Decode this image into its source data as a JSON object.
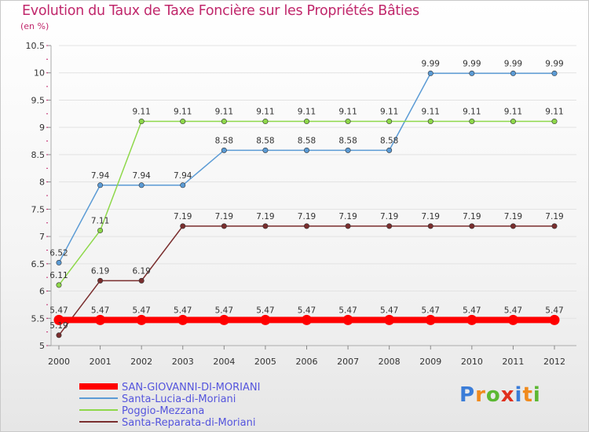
{
  "chart_data": {
    "type": "line",
    "title": "Evolution du Taux de Taxe Foncière sur les Propriétés Bâties",
    "subtitle": "(en %)",
    "xlabel": "",
    "ylabel": "(en %)",
    "ylim": [
      5,
      10.5
    ],
    "yticks": [
      "5",
      "5.5",
      "6",
      "6.5",
      "7",
      "7.5",
      "8",
      "8.5",
      "9",
      "9.5",
      "10",
      "10.5"
    ],
    "yticks_values": [
      5,
      5.5,
      6,
      6.5,
      7,
      7.5,
      8,
      8.5,
      9,
      9.5,
      10,
      10.5
    ],
    "x": [
      "2000",
      "2001",
      "2002",
      "2003",
      "2004",
      "2005",
      "2006",
      "2007",
      "2008",
      "2009",
      "2010",
      "2011",
      "2012"
    ],
    "grid": "horizontal",
    "series": [
      {
        "name": "SAN-GIOVANNI-DI-MORIANI",
        "color": "#ff0000",
        "values": [
          5.47,
          5.47,
          5.47,
          5.47,
          5.47,
          5.47,
          5.47,
          5.47,
          5.47,
          5.47,
          5.47,
          5.47,
          5.47
        ],
        "labels": [
          "5.47",
          "5.47",
          "5.47",
          "5.47",
          "5.47",
          "5.47",
          "5.47",
          "5.47",
          "5.47",
          "5.47",
          "5.47",
          "5.47",
          "5.47"
        ]
      },
      {
        "name": "Santa-Lucia-di-Moriani",
        "color": "#5b9bd5",
        "values": [
          6.52,
          7.94,
          7.94,
          7.94,
          8.58,
          8.58,
          8.58,
          8.58,
          8.58,
          9.99,
          9.99,
          9.99,
          9.99
        ],
        "labels": [
          "6.52",
          "7.94",
          "7.94",
          "7.94",
          "8.58",
          "8.58",
          "8.58",
          "8.58",
          "8.58",
          "9.99",
          "9.99",
          "9.99",
          "9.99"
        ]
      },
      {
        "name": "Poggio-Mezzana",
        "color": "#8ed84a",
        "values": [
          6.11,
          7.11,
          9.11,
          9.11,
          9.11,
          9.11,
          9.11,
          9.11,
          9.11,
          9.11,
          9.11,
          9.11,
          9.11
        ],
        "labels": [
          "6.11",
          "7.11",
          "9.11",
          "9.11",
          "9.11",
          "9.11",
          "9.11",
          "9.11",
          "9.11",
          "9.11",
          "9.11",
          "9.11",
          "9.11"
        ]
      },
      {
        "name": "Santa-Reparata-di-Moriani",
        "color": "#7a2e2e",
        "values": [
          5.19,
          6.19,
          6.19,
          7.19,
          7.19,
          7.19,
          7.19,
          7.19,
          7.19,
          7.19,
          7.19,
          7.19,
          7.19
        ],
        "labels": [
          "5.19",
          "6.19",
          "6.19",
          "7.19",
          "7.19",
          "7.19",
          "7.19",
          "7.19",
          "7.19",
          "7.19",
          "7.19",
          "7.19",
          "7.19"
        ]
      }
    ],
    "legend": {
      "position": "bottom-left",
      "text_color": "#5555dd"
    }
  },
  "logo": {
    "text": "Proxiti",
    "letters": [
      "P",
      "r",
      "o",
      "x",
      "i",
      "t",
      "i"
    ],
    "colors": [
      "#3b7dd8",
      "#f08a1d",
      "#5cb833",
      "#e0301e",
      "#3b7dd8",
      "#f08a1d",
      "#5cb833"
    ]
  }
}
